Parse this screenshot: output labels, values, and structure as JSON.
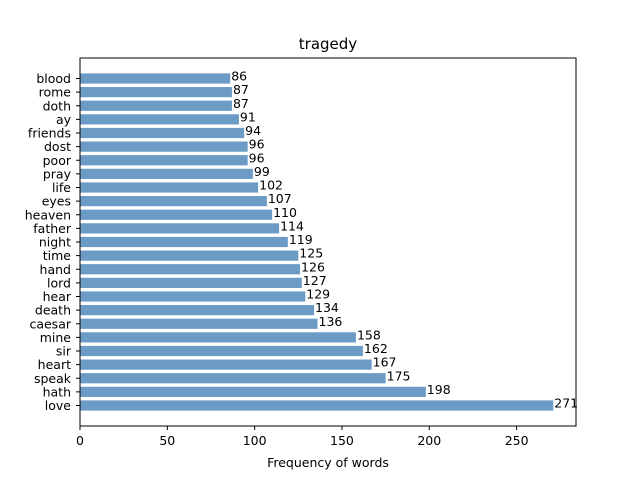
{
  "chart_data": {
    "type": "bar",
    "orientation": "horizontal",
    "title": "tragedy",
    "xlabel": "Frequency of words",
    "ylabel": "",
    "xlim": [
      0,
      284
    ],
    "xticks": [
      0,
      50,
      100,
      150,
      200,
      250
    ],
    "grid": false,
    "bar_color": "#6c9bc5",
    "categories": [
      "love",
      "hath",
      "speak",
      "heart",
      "sir",
      "mine",
      "caesar",
      "death",
      "hear",
      "lord",
      "hand",
      "time",
      "night",
      "father",
      "heaven",
      "eyes",
      "life",
      "pray",
      "poor",
      "dost",
      "friends",
      "ay",
      "doth",
      "rome",
      "blood"
    ],
    "values": [
      271,
      198,
      175,
      167,
      162,
      158,
      136,
      134,
      129,
      127,
      126,
      125,
      119,
      114,
      110,
      107,
      102,
      99,
      96,
      96,
      94,
      91,
      87,
      87,
      86
    ]
  }
}
